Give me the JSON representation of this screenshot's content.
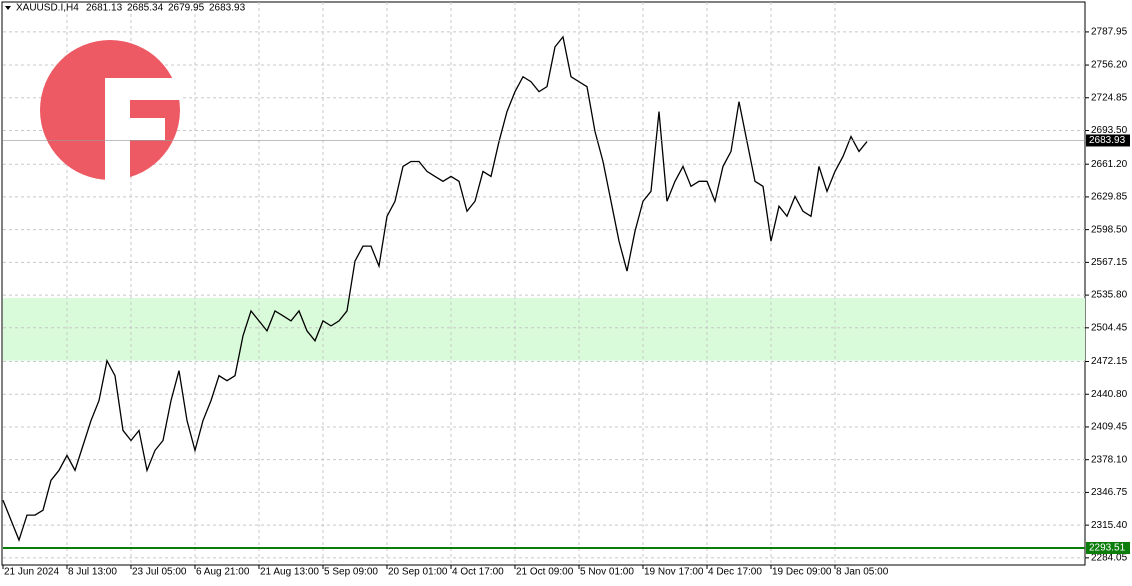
{
  "chart_data": {
    "type": "line",
    "title": "XAUUSD.I,H4",
    "ohlc": [
      2681.13,
      2685.34,
      2679.95,
      2683.93
    ],
    "last_price": 2683.93,
    "support_line": 2293.51,
    "zone": [
      2473.0,
      2533.0
    ],
    "color": "#000000",
    "grid": true,
    "categories": [
      "21 Jun 2024",
      null,
      null,
      null,
      null,
      null,
      null,
      null,
      "8 Jul 13:00",
      null,
      null,
      null,
      null,
      null,
      null,
      null,
      "23 Jul 05:00",
      null,
      null,
      null,
      null,
      null,
      null,
      null,
      "6 Aug 21:00",
      null,
      null,
      null,
      null,
      null,
      null,
      null,
      "21 Aug 13:00",
      null,
      null,
      null,
      null,
      null,
      null,
      null,
      "5 Sep 09:00",
      null,
      null,
      null,
      null,
      null,
      null,
      null,
      "20 Sep 01:00",
      null,
      null,
      null,
      null,
      null,
      null,
      null,
      "4 Oct 17:00",
      null,
      null,
      null,
      null,
      null,
      null,
      null,
      "21 Oct 09:00",
      null,
      null,
      null,
      null,
      null,
      null,
      null,
      "5 Nov 01:00",
      null,
      null,
      null,
      null,
      null,
      null,
      null,
      "19 Nov 17:00",
      null,
      null,
      null,
      null,
      null,
      null,
      null,
      "4 Dec 17:00",
      null,
      null,
      null,
      null,
      null,
      null,
      null,
      "19 Dec 09:00",
      null,
      null,
      null,
      null,
      null,
      null,
      null,
      "8 Jan 05:00",
      null,
      null,
      null,
      null
    ],
    "values": [
      2339.2,
      2320.2,
      2301.1,
      2325.0,
      2325.0,
      2329.7,
      2358.3,
      2367.9,
      2382.2,
      2367.9,
      2391.7,
      2415.6,
      2434.7,
      2472.9,
      2458.6,
      2406.1,
      2396.5,
      2406.1,
      2367.9,
      2387.0,
      2396.5,
      2434.7,
      2463.4,
      2415.6,
      2387.0,
      2415.6,
      2434.7,
      2458.6,
      2453.8,
      2458.6,
      2496.8,
      2520.6,
      2511.1,
      2501.5,
      2520.6,
      2515.9,
      2511.1,
      2520.6,
      2501.5,
      2492.0,
      2511.1,
      2506.3,
      2511.1,
      2520.6,
      2568.4,
      2582.7,
      2582.7,
      2563.6,
      2611.3,
      2625.7,
      2659.1,
      2663.8,
      2663.8,
      2654.3,
      2649.5,
      2644.8,
      2649.5,
      2644.8,
      2616.1,
      2625.7,
      2654.3,
      2649.5,
      2682.9,
      2711.6,
      2730.7,
      2745.0,
      2740.2,
      2730.7,
      2735.5,
      2773.6,
      2783.2,
      2745.0,
      2740.2,
      2735.5,
      2692.5,
      2663.8,
      2625.7,
      2587.5,
      2558.8,
      2597.0,
      2625.7,
      2635.2,
      2711.6,
      2625.7,
      2644.8,
      2659.1,
      2640.0,
      2644.8,
      2644.8,
      2625.7,
      2659.1,
      2673.4,
      2721.1,
      2682.9,
      2644.8,
      2640.0,
      2587.5,
      2620.9,
      2611.3,
      2630.4,
      2616.1,
      2611.3,
      2659.1,
      2635.2,
      2654.3,
      2668.6,
      2687.7,
      2673.4,
      2682.9
    ],
    "ylim": [
      2277.2,
      2816.6
    ],
    "yticks": [
      2787.95,
      {
        "value": 2756.2,
        "label": "2756.20"
      },
      2724.85,
      {
        "value": 2693.5,
        "label": "2693.50"
      },
      {
        "value": 2661.2,
        "label": "2661.20"
      },
      2629.85,
      {
        "value": 2598.5,
        "label": "2598.50"
      },
      2567.15,
      {
        "value": 2535.8,
        "label": "2535.80"
      },
      2504.45,
      2472.15,
      {
        "value": 2440.8,
        "label": "2440.80"
      },
      2409.45,
      {
        "value": 2378.1,
        "label": "2378.10"
      },
      2346.75,
      {
        "value": 2315.4,
        "label": "2315.40"
      },
      2284.05
    ]
  }
}
